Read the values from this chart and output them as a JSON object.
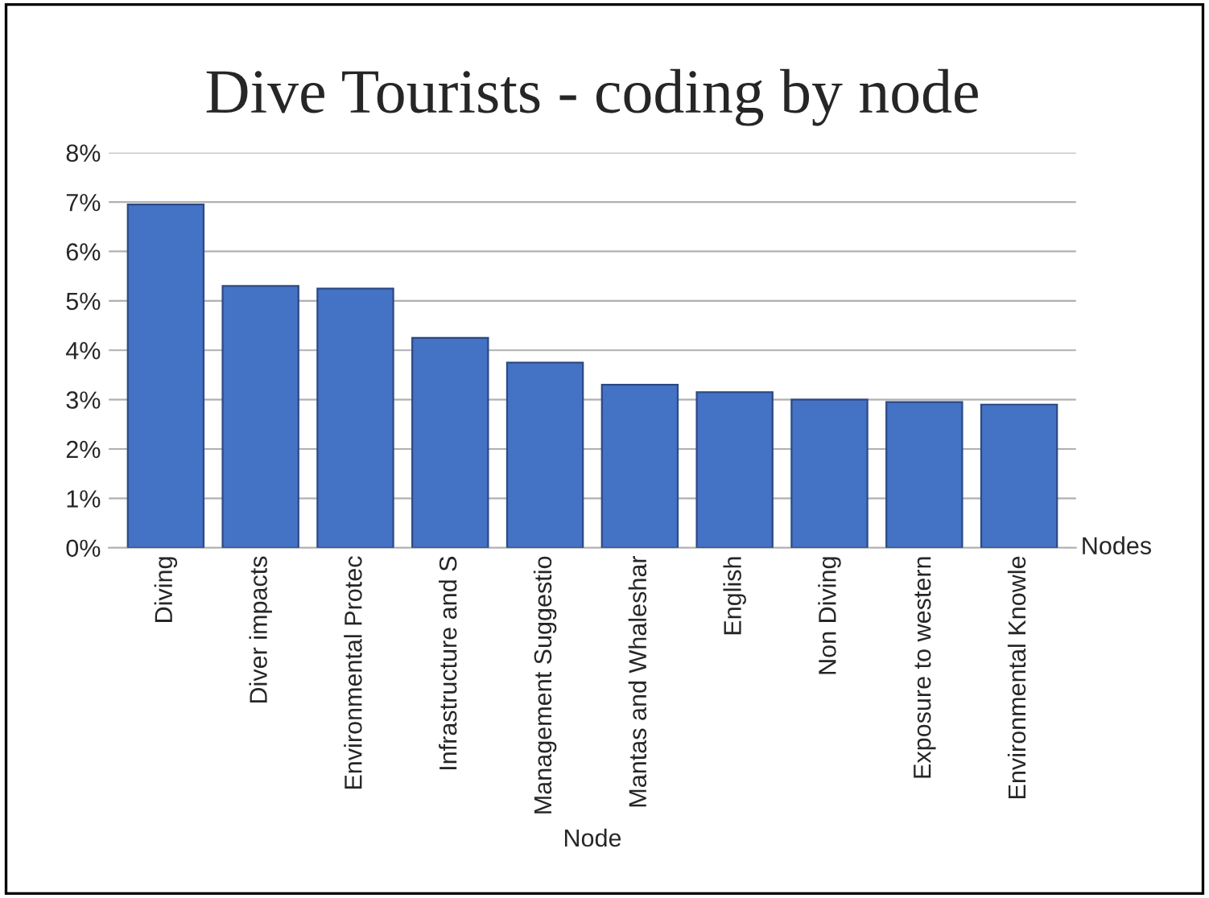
{
  "chart_data": {
    "type": "bar",
    "title": "Dive Tourists - coding by node",
    "xlabel": "Node",
    "categories": [
      "Diving",
      "Diver impacts",
      "Environmental Protec",
      "Infrastructure and S",
      "Management Suggestio",
      "Mantas and Whaleshar",
      "English",
      "Non Diving",
      "Exposure to western",
      "Environmental Knowle"
    ],
    "values": [
      6.95,
      5.3,
      5.25,
      4.25,
      3.75,
      3.3,
      3.15,
      3.0,
      2.95,
      2.9
    ],
    "color": "#4472c4",
    "ylim": [
      0,
      8
    ],
    "yticks": [
      {
        "value": 0,
        "label": "0%"
      },
      {
        "value": 1,
        "label": "1%"
      },
      {
        "value": 2,
        "label": "2%"
      },
      {
        "value": 3,
        "label": "3%"
      },
      {
        "value": 4,
        "label": "4%"
      },
      {
        "value": 5,
        "label": "5%"
      },
      {
        "value": 6,
        "label": "6%"
      },
      {
        "value": 7,
        "label": "7%"
      },
      {
        "value": 8,
        "label": "8%"
      }
    ],
    "grid": "y",
    "annotations": [
      "Nodes"
    ]
  }
}
